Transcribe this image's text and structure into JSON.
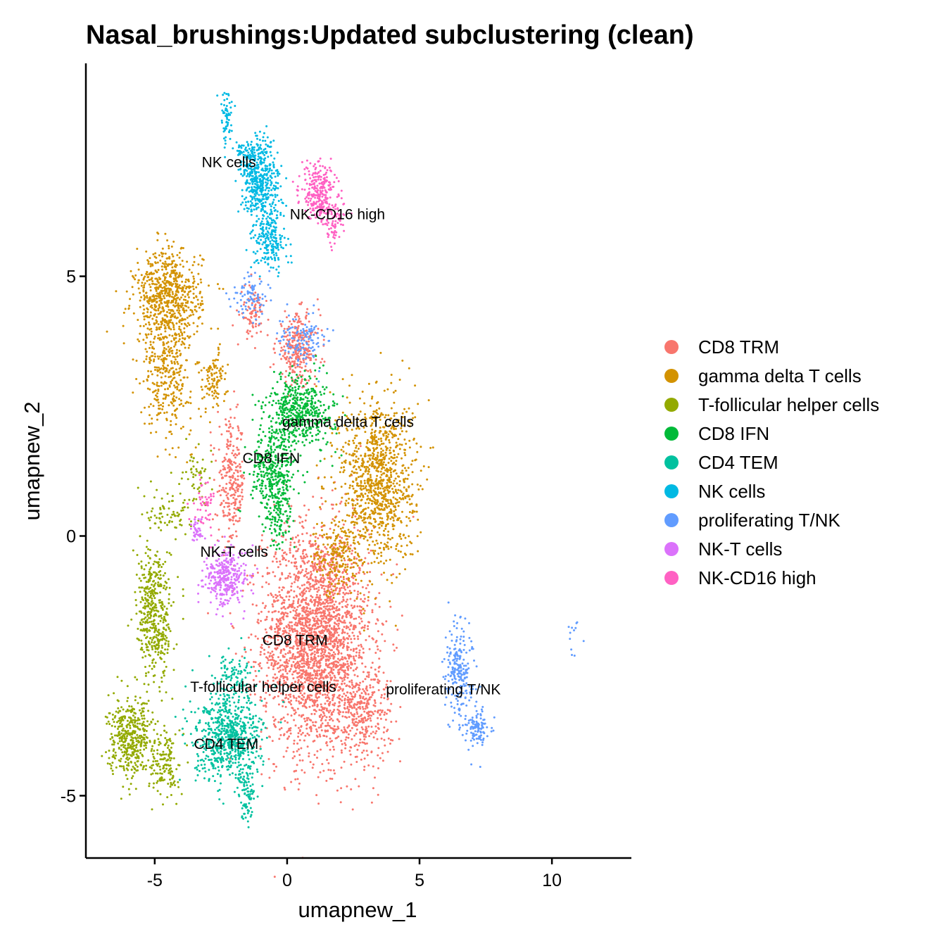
{
  "chart_data": {
    "type": "scatter",
    "title": "Nasal_brushings:Updated subclustering (clean)",
    "xlabel": "umapnew_1",
    "ylabel": "umapnew_2",
    "xlim": [
      -7.6,
      13.0
    ],
    "ylim": [
      -6.2,
      9.1
    ],
    "xticks": [
      -5,
      0,
      5,
      10
    ],
    "yticks": [
      -5,
      0,
      5
    ],
    "xtick_labels": [
      "-5",
      "0",
      "5",
      "10"
    ],
    "ytick_labels": [
      "-5",
      "0",
      "5"
    ],
    "grid": false,
    "legend_position": "right",
    "legend": [
      {
        "name": "CD8 TRM",
        "color": "#F8766D"
      },
      {
        "name": "gamma delta T cells",
        "color": "#D39200"
      },
      {
        "name": "T-follicular helper cells",
        "color": "#93AA00"
      },
      {
        "name": "CD8 IFN",
        "color": "#00BA38"
      },
      {
        "name": "CD4 TEM",
        "color": "#00C19F"
      },
      {
        "name": "NK cells",
        "color": "#00B9E3"
      },
      {
        "name": "proliferating T/NK",
        "color": "#619CFF"
      },
      {
        "name": "NK-T cells",
        "color": "#DB72FB"
      },
      {
        "name": "NK-CD16 high",
        "color": "#FF61C3"
      }
    ],
    "cluster_labels": [
      {
        "text": "NK cells",
        "x": -2.2,
        "y": 7.1
      },
      {
        "text": "NK-CD16 high",
        "x": 1.9,
        "y": 6.1
      },
      {
        "text": "gamma delta T cells",
        "x": 2.3,
        "y": 2.1
      },
      {
        "text": "CD8 IFN",
        "x": -0.6,
        "y": 1.4
      },
      {
        "text": "NK-T cells",
        "x": -2.0,
        "y": -0.4
      },
      {
        "text": "CD8 TRM",
        "x": 0.3,
        "y": -2.1
      },
      {
        "text": "T-follicular helper cells",
        "x": -0.9,
        "y": -3.0
      },
      {
        "text": "proliferating T/NK",
        "x": 5.9,
        "y": -3.05
      },
      {
        "text": "CD4 TEM",
        "x": -2.3,
        "y": -4.1
      }
    ],
    "series": [
      {
        "name": "CD8 TRM",
        "color": "#F8766D",
        "regions": [
          {
            "cx": 1.1,
            "cy": -2.0,
            "sx": 1.35,
            "sy": 1.45,
            "n": 2600
          },
          {
            "cx": 0.4,
            "cy": 3.6,
            "sx": 0.55,
            "sy": 0.45,
            "n": 280
          },
          {
            "cx": -2.1,
            "cy": 1.0,
            "sx": 0.35,
            "sy": 0.8,
            "n": 260
          },
          {
            "cx": -1.3,
            "cy": 4.3,
            "sx": 0.3,
            "sy": 0.35,
            "n": 90
          },
          {
            "cx": 2.9,
            "cy": -3.4,
            "sx": 0.7,
            "sy": 0.6,
            "n": 300
          }
        ]
      },
      {
        "name": "gamma delta T cells",
        "color": "#D39200",
        "regions": [
          {
            "cx": -4.5,
            "cy": 4.6,
            "sx": 0.85,
            "sy": 0.6,
            "n": 650
          },
          {
            "cx": -4.5,
            "cy": 3.2,
            "sx": 0.6,
            "sy": 0.8,
            "n": 350
          },
          {
            "cx": -2.8,
            "cy": 3.0,
            "sx": 0.35,
            "sy": 0.4,
            "n": 110
          },
          {
            "cx": 3.4,
            "cy": 1.1,
            "sx": 0.95,
            "sy": 1.1,
            "n": 1050
          },
          {
            "cx": 1.9,
            "cy": -0.4,
            "sx": 0.6,
            "sy": 0.5,
            "n": 200
          }
        ]
      },
      {
        "name": "T-follicular helper cells",
        "color": "#93AA00",
        "regions": [
          {
            "cx": -5.0,
            "cy": -1.5,
            "sx": 0.45,
            "sy": 0.9,
            "n": 450
          },
          {
            "cx": -5.9,
            "cy": -3.9,
            "sx": 0.55,
            "sy": 0.5,
            "n": 420
          },
          {
            "cx": -4.6,
            "cy": -4.4,
            "sx": 0.35,
            "sy": 0.45,
            "n": 140
          },
          {
            "cx": -4.4,
            "cy": 0.5,
            "sx": 0.6,
            "sy": 0.3,
            "n": 70
          },
          {
            "cx": -3.4,
            "cy": 1.2,
            "sx": 0.4,
            "sy": 0.4,
            "n": 50
          }
        ]
      },
      {
        "name": "CD8 IFN",
        "color": "#00BA38",
        "regions": [
          {
            "cx": 0.5,
            "cy": 2.4,
            "sx": 0.85,
            "sy": 0.45,
            "n": 500
          },
          {
            "cx": -0.5,
            "cy": 1.2,
            "sx": 0.55,
            "sy": 0.6,
            "n": 380
          },
          {
            "cx": -0.3,
            "cy": 0.3,
            "sx": 0.3,
            "sy": 0.4,
            "n": 80
          }
        ]
      },
      {
        "name": "CD4 TEM",
        "color": "#00C19F",
        "regions": [
          {
            "cx": -2.2,
            "cy": -3.9,
            "sx": 0.85,
            "sy": 0.55,
            "n": 700
          },
          {
            "cx": -1.5,
            "cy": -4.9,
            "sx": 0.2,
            "sy": 0.35,
            "n": 80
          },
          {
            "cx": -2.0,
            "cy": -2.7,
            "sx": 0.45,
            "sy": 0.3,
            "n": 90
          }
        ]
      },
      {
        "name": "NK cells",
        "color": "#00B9E3",
        "regions": [
          {
            "cx": -1.0,
            "cy": 6.8,
            "sx": 0.45,
            "sy": 0.55,
            "n": 420
          },
          {
            "cx": -0.6,
            "cy": 5.7,
            "sx": 0.4,
            "sy": 0.4,
            "n": 200
          },
          {
            "cx": -2.3,
            "cy": 8.1,
            "sx": 0.15,
            "sy": 0.35,
            "n": 60
          },
          {
            "cx": -1.4,
            "cy": 7.3,
            "sx": 0.35,
            "sy": 0.25,
            "n": 90
          }
        ]
      },
      {
        "name": "proliferating T/NK",
        "color": "#619CFF",
        "regions": [
          {
            "cx": 6.5,
            "cy": -2.6,
            "sx": 0.35,
            "sy": 0.6,
            "n": 220
          },
          {
            "cx": 7.2,
            "cy": -3.7,
            "sx": 0.3,
            "sy": 0.25,
            "n": 110
          },
          {
            "cx": 0.6,
            "cy": 3.8,
            "sx": 0.6,
            "sy": 0.3,
            "n": 120
          },
          {
            "cx": -1.4,
            "cy": 4.6,
            "sx": 0.45,
            "sy": 0.3,
            "n": 80
          },
          {
            "cx": 10.8,
            "cy": -1.9,
            "sx": 0.2,
            "sy": 0.3,
            "n": 12
          }
        ]
      },
      {
        "name": "NK-T cells",
        "color": "#DB72FB",
        "regions": [
          {
            "cx": -2.3,
            "cy": -0.8,
            "sx": 0.55,
            "sy": 0.35,
            "n": 320
          },
          {
            "cx": -3.4,
            "cy": 0.1,
            "sx": 0.15,
            "sy": 0.2,
            "n": 40
          }
        ]
      },
      {
        "name": "NK-CD16 high",
        "color": "#FF61C3",
        "regions": [
          {
            "cx": 1.2,
            "cy": 6.6,
            "sx": 0.45,
            "sy": 0.4,
            "n": 280
          },
          {
            "cx": 1.8,
            "cy": 6.0,
            "sx": 0.3,
            "sy": 0.25,
            "n": 60
          },
          {
            "cx": -3.1,
            "cy": 0.6,
            "sx": 0.25,
            "sy": 0.35,
            "n": 50
          }
        ]
      }
    ]
  }
}
